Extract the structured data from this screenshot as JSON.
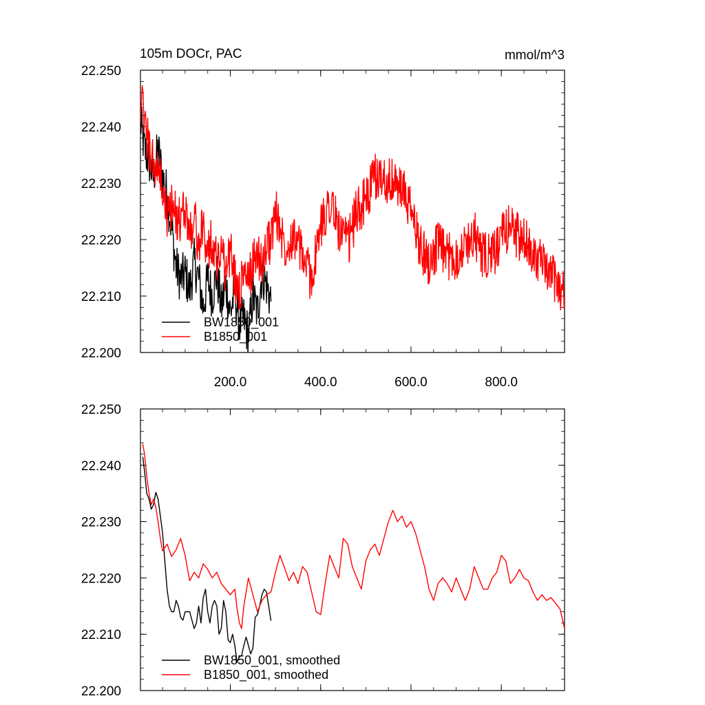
{
  "figure": {
    "title_left": "105m DOCr, PAC",
    "title_right": "mmol/m^3"
  },
  "chart_data": [
    {
      "type": "line",
      "panel": "top",
      "xlim": [
        1,
        940
      ],
      "ylim": [
        22.2,
        22.25
      ],
      "x_ticks": [
        200,
        400,
        600,
        800
      ],
      "x_tick_labels": [
        "200.0",
        "400.0",
        "600.0",
        "800.0"
      ],
      "y_ticks": [
        22.2,
        22.21,
        22.22,
        22.23,
        22.24,
        22.25
      ],
      "y_tick_labels": [
        "22.200",
        "22.210",
        "22.220",
        "22.230",
        "22.240",
        "22.250"
      ],
      "legend": "bottom-left",
      "series": [
        {
          "name": "BW1850_001",
          "color": "#000000",
          "x": [
            1,
            10,
            20,
            30,
            40,
            50,
            60,
            70,
            80,
            90,
            100,
            110,
            120,
            130,
            140,
            150,
            160,
            170,
            180,
            190,
            200,
            210,
            220,
            230,
            240,
            250,
            260,
            270,
            280,
            290
          ],
          "y": [
            22.241,
            22.236,
            22.234,
            22.231,
            22.236,
            22.231,
            22.228,
            22.222,
            22.215,
            22.213,
            22.214,
            22.211,
            22.216,
            22.213,
            22.208,
            22.213,
            22.21,
            22.214,
            22.208,
            22.212,
            22.207,
            22.211,
            22.205,
            22.206,
            22.203,
            22.21,
            22.207,
            22.214,
            22.212,
            22.209
          ]
        },
        {
          "name": "B1850_001",
          "color": "#ff0000",
          "x": [
            1,
            10,
            20,
            30,
            40,
            50,
            60,
            70,
            80,
            90,
            100,
            110,
            120,
            130,
            140,
            150,
            160,
            170,
            180,
            190,
            200,
            210,
            220,
            230,
            240,
            250,
            260,
            270,
            280,
            290,
            300,
            320,
            340,
            360,
            380,
            400,
            420,
            440,
            460,
            480,
            500,
            520,
            540,
            560,
            580,
            600,
            620,
            640,
            660,
            680,
            700,
            720,
            740,
            760,
            780,
            800,
            820,
            840,
            860,
            880,
            900,
            920,
            940
          ],
          "y": [
            22.245,
            22.241,
            22.236,
            22.233,
            22.232,
            22.229,
            22.224,
            22.226,
            22.224,
            22.223,
            22.226,
            22.221,
            22.224,
            22.219,
            22.222,
            22.218,
            22.22,
            22.216,
            22.219,
            22.214,
            22.218,
            22.213,
            22.211,
            22.214,
            22.212,
            22.216,
            22.218,
            22.215,
            22.219,
            22.22,
            22.225,
            22.219,
            22.221,
            22.217,
            22.213,
            22.222,
            22.227,
            22.222,
            22.219,
            22.225,
            22.227,
            22.231,
            22.231,
            22.23,
            22.229,
            22.225,
            22.219,
            22.216,
            22.219,
            22.217,
            22.217,
            22.219,
            22.221,
            22.217,
            22.217,
            22.22,
            22.223,
            22.22,
            22.219,
            22.217,
            22.214,
            22.213,
            22.21
          ]
        }
      ]
    },
    {
      "type": "line",
      "panel": "bottom",
      "xlim": [
        1,
        940
      ],
      "ylim": [
        22.2,
        22.25
      ],
      "y_ticks": [
        22.2,
        22.21,
        22.22,
        22.23,
        22.24,
        22.25
      ],
      "y_tick_labels": [
        "22.200",
        "22.210",
        "22.220",
        "22.230",
        "22.240",
        "22.250"
      ],
      "legend": "bottom-left",
      "series": [
        {
          "name": "BW1850_001, smoothed",
          "color": "#000000",
          "x": [
            6,
            10,
            15,
            20,
            25,
            30,
            35,
            40,
            45,
            50,
            55,
            60,
            65,
            70,
            75,
            80,
            85,
            90,
            95,
            100,
            105,
            110,
            115,
            120,
            125,
            130,
            135,
            140,
            145,
            150,
            155,
            160,
            165,
            170,
            175,
            180,
            185,
            190,
            195,
            200,
            205,
            210,
            215,
            220,
            225,
            230,
            235,
            240,
            245,
            250,
            255,
            260,
            265,
            270,
            275,
            280,
            285,
            290
          ],
          "y": [
            22.2415,
            22.239,
            22.235,
            22.234,
            22.2322,
            22.233,
            22.2352,
            22.234,
            22.231,
            22.228,
            22.223,
            22.218,
            22.215,
            22.214,
            22.214,
            22.216,
            22.215,
            22.213,
            22.2125,
            22.214,
            22.214,
            22.214,
            22.2125,
            22.211,
            22.212,
            22.215,
            22.212,
            22.2165,
            22.218,
            22.214,
            22.212,
            22.215,
            22.216,
            22.215,
            22.21,
            22.211,
            22.216,
            22.214,
            22.209,
            22.2085,
            22.21,
            22.208,
            22.205,
            22.206,
            22.2062,
            22.208,
            22.2095,
            22.208,
            22.2065,
            22.2075,
            22.213,
            22.2135,
            22.215,
            22.217,
            22.218,
            22.2175,
            22.215,
            22.2124
          ]
        },
        {
          "name": "B1850_001, smoothed",
          "color": "#ff0000",
          "x": [
            6,
            10,
            15,
            20,
            25,
            30,
            35,
            40,
            45,
            50,
            60,
            70,
            80,
            90,
            100,
            110,
            120,
            130,
            140,
            150,
            160,
            170,
            180,
            190,
            200,
            210,
            215,
            220,
            225,
            230,
            240,
            250,
            260,
            270,
            280,
            290,
            300,
            310,
            320,
            330,
            340,
            350,
            360,
            370,
            380,
            390,
            400,
            410,
            420,
            430,
            440,
            450,
            460,
            470,
            480,
            490,
            500,
            510,
            520,
            530,
            540,
            550,
            560,
            570,
            580,
            590,
            600,
            610,
            620,
            630,
            640,
            650,
            660,
            670,
            680,
            690,
            700,
            710,
            720,
            730,
            740,
            750,
            760,
            770,
            780,
            790,
            800,
            810,
            820,
            830,
            840,
            850,
            860,
            870,
            880,
            890,
            900,
            910,
            920,
            930,
            940
          ],
          "y": [
            22.2438,
            22.242,
            22.238,
            22.235,
            22.233,
            22.234,
            22.2325,
            22.23,
            22.227,
            22.2248,
            22.226,
            22.2238,
            22.225,
            22.227,
            22.224,
            22.2195,
            22.221,
            22.22,
            22.2225,
            22.2215,
            22.22,
            22.221,
            22.219,
            22.218,
            22.217,
            22.218,
            22.2145,
            22.212,
            22.211,
            22.215,
            22.22,
            22.217,
            22.214,
            22.216,
            22.217,
            22.2175,
            22.221,
            22.224,
            22.2218,
            22.2195,
            22.221,
            22.219,
            22.222,
            22.221,
            22.2175,
            22.214,
            22.2135,
            22.219,
            22.224,
            22.222,
            22.22,
            22.227,
            22.226,
            22.222,
            22.22,
            22.218,
            22.223,
            22.225,
            22.226,
            22.224,
            22.227,
            22.23,
            22.232,
            22.23,
            22.231,
            22.229,
            22.23,
            22.228,
            22.225,
            22.222,
            22.218,
            22.216,
            22.219,
            22.22,
            22.219,
            22.2175,
            22.22,
            22.218,
            22.216,
            22.218,
            22.222,
            22.22,
            22.218,
            22.218,
            22.22,
            22.221,
            22.224,
            22.223,
            22.219,
            22.22,
            22.2215,
            22.22,
            22.2195,
            22.2175,
            22.216,
            22.217,
            22.216,
            22.2165,
            22.2155,
            22.2145,
            22.211
          ]
        }
      ]
    }
  ]
}
